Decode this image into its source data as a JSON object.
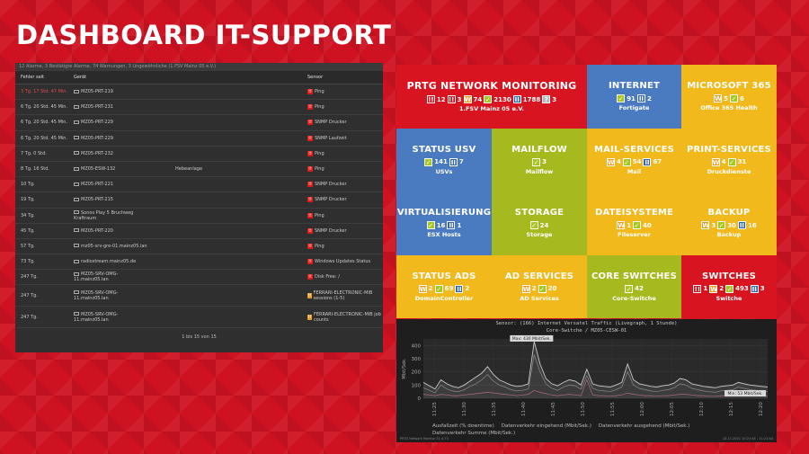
{
  "page": {
    "title": "DASHBOARD IT-SUPPORT"
  },
  "alarm_summary": "12 Alarme, 3 Bestätigte Alarme, 74 Warnungen, 3 Ungewöhnliche (1.FSV Mainz 05 e.V.)",
  "table": {
    "headers": {
      "since": "Fehler seit",
      "device": "Gerät",
      "sensor": "Sensor"
    },
    "rows": [
      {
        "since": "3 Tg. 17 Std. 47 Min.",
        "device": "MZ05-PRT-219",
        "extra": "",
        "sensor": "Ping",
        "badge": "down",
        "red": true
      },
      {
        "since": "6 Tg. 20 Std. 45 Min.",
        "device": "MZ05-PRT-231",
        "extra": "",
        "sensor": "Ping",
        "badge": "down",
        "red": false
      },
      {
        "since": "6 Tg. 20 Std. 45 Min.",
        "device": "MZ05-PRT-229",
        "extra": "",
        "sensor": "SNMP Drucker",
        "badge": "down",
        "red": false
      },
      {
        "since": "6 Tg. 20 Std. 45 Min.",
        "device": "MZ05-PRT-229",
        "extra": "",
        "sensor": "SNMP Laufzeit",
        "badge": "down",
        "red": false
      },
      {
        "since": "7 Tg. 0 Std.",
        "device": "MZ05-PRT-232",
        "extra": "",
        "sensor": "Ping",
        "badge": "down",
        "red": false
      },
      {
        "since": "8 Tg. 16 Std.",
        "device": "MZ05-ESW-132",
        "extra": "Hebeanlage",
        "sensor": "Ping",
        "badge": "down",
        "red": false
      },
      {
        "since": "10 Tg.",
        "device": "MZ05-PRT-221",
        "extra": "",
        "sensor": "SNMP Drucker",
        "badge": "down",
        "red": false
      },
      {
        "since": "19 Tg.",
        "device": "MZ05-PRT-215",
        "extra": "",
        "sensor": "SNMP Drucker",
        "badge": "down",
        "red": false
      },
      {
        "since": "34 Tg.",
        "device": "Sonos Play 5 Bruchweg Kraftraum",
        "extra": "",
        "sensor": "Ping",
        "badge": "down",
        "red": false
      },
      {
        "since": "45 Tg.",
        "device": "MZ05-PRT-220",
        "extra": "",
        "sensor": "SNMP Drucker",
        "badge": "down",
        "red": false
      },
      {
        "since": "57 Tg.",
        "device": "mz05-srv-gre-01.mainz05.lan",
        "extra": "",
        "sensor": "Ping",
        "badge": "down",
        "red": false
      },
      {
        "since": "73 Tg.",
        "device": "radiostream.mainz05.de",
        "extra": "",
        "sensor": "Windows Updates Status",
        "badge": "down",
        "red": false
      },
      {
        "since": "247 Tg.",
        "device": "MZ05-SRV-OMG-11.mainz05.lan",
        "extra": "",
        "sensor": "Disk Free: /",
        "badge": "down",
        "red": false
      },
      {
        "since": "247 Tg.",
        "device": "MZ05-SRV-OMG-11.mainz05.lan",
        "extra": "",
        "sensor": "FERRARI-ELECTRONIC-MIB sessions (1-5)",
        "badge": "orange",
        "red": false,
        "tall": true
      },
      {
        "since": "247 Tg.",
        "device": "MZ05-SRV-OMG-11.mainz05.lan",
        "extra": "",
        "sensor": "FERRARI-ELECTRONIC-MIB job counts",
        "badge": "orange",
        "red": false,
        "tall": true
      }
    ],
    "pager": "1 bis 15 von 15"
  },
  "tiles": [
    {
      "title": "PRTG NETWORK MONITORING",
      "color": "red",
      "sub": "1.FSV Mainz 05 e.V.",
      "badges": [
        {
          "k": "down",
          "v": "12"
        },
        {
          "k": "down",
          "v": "3"
        },
        {
          "k": "warn",
          "v": "74"
        },
        {
          "k": "ok",
          "v": "2130"
        },
        {
          "k": "pause",
          "v": "1788"
        },
        {
          "k": "unk",
          "v": "3"
        }
      ]
    },
    {
      "title": "INTERNET",
      "color": "blue",
      "sub": "Fortigate",
      "badges": [
        {
          "k": "ok",
          "v": "91"
        },
        {
          "k": "pause",
          "v": "2"
        }
      ]
    },
    {
      "title": "MICROSOFT 365",
      "color": "yellow",
      "sub": "Office 365 Health",
      "badges": [
        {
          "k": "warn",
          "v": "5"
        },
        {
          "k": "ok",
          "v": "6"
        }
      ]
    },
    {
      "title": "STATUS USV",
      "color": "blue",
      "sub": "USVs",
      "badges": [
        {
          "k": "ok",
          "v": "141"
        },
        {
          "k": "pause",
          "v": "7"
        }
      ]
    },
    {
      "title": "MAILFLOW",
      "color": "green",
      "sub": "Mailflow",
      "badges": [
        {
          "k": "ok",
          "v": "3"
        }
      ]
    },
    {
      "title": "MAIL-SERVICES",
      "color": "yellow",
      "sub": "Mail",
      "badges": [
        {
          "k": "warn",
          "v": "4"
        },
        {
          "k": "ok",
          "v": "54"
        },
        {
          "k": "pause",
          "v": "67"
        }
      ]
    },
    {
      "title": "PRINT-SERVICES",
      "color": "yellow",
      "sub": "Druckdienste",
      "badges": [
        {
          "k": "warn",
          "v": "4"
        },
        {
          "k": "ok",
          "v": "31"
        }
      ]
    },
    {
      "title": "VIRTUALISIERUNG",
      "color": "blue",
      "sub": "ESX Hosts",
      "badges": [
        {
          "k": "ok",
          "v": "16"
        },
        {
          "k": "pause",
          "v": "1"
        }
      ]
    },
    {
      "title": "STORAGE",
      "color": "green",
      "sub": "Storage",
      "badges": [
        {
          "k": "ok",
          "v": "24"
        }
      ]
    },
    {
      "title": "DATEISYSTEME",
      "color": "yellow",
      "sub": "Fileserver",
      "badges": [
        {
          "k": "warn",
          "v": "1"
        },
        {
          "k": "ok",
          "v": "40"
        }
      ]
    },
    {
      "title": "BACKUP",
      "color": "yellow",
      "sub": "Backup",
      "badges": [
        {
          "k": "warn",
          "v": "3"
        },
        {
          "k": "ok",
          "v": "30"
        },
        {
          "k": "pause",
          "v": "16"
        }
      ]
    },
    {
      "title": "STATUS ADS",
      "color": "yellow",
      "sub": "DomainController",
      "badges": [
        {
          "k": "warn",
          "v": "2"
        },
        {
          "k": "ok",
          "v": "69"
        },
        {
          "k": "pause",
          "v": "2"
        }
      ]
    },
    {
      "title": "AD SERVICES",
      "color": "yellow",
      "sub": "AD Services",
      "badges": [
        {
          "k": "warn",
          "v": "2"
        },
        {
          "k": "ok",
          "v": "20"
        }
      ]
    },
    {
      "title": "CORE SWITCHES",
      "color": "green",
      "sub": "Core-Switche",
      "badges": [
        {
          "k": "ok",
          "v": "42"
        }
      ]
    },
    {
      "title": "SWITCHES",
      "color": "red",
      "sub": "Switche",
      "badges": [
        {
          "k": "down",
          "v": "1"
        },
        {
          "k": "warn",
          "v": "2"
        },
        {
          "k": "ok",
          "v": "493"
        },
        {
          "k": "pause",
          "v": "3"
        }
      ]
    }
  ],
  "graph": {
    "title": "Sensor: (166) Internet Versatel Traffic (Livegraph, 1 Stunde)",
    "subtitle": "Core-Switche / MZ05-CESW-01",
    "max_label": "Max: 430 Mbit/Sek.",
    "min_label": "Min: 53 Mbit/Sek.",
    "legend": [
      "Ausfallzeit (% downtime)",
      "Datenverkehr eingehend (Mbit/Sek.)",
      "Datenverkehr ausgehend (Mbit/Sek.)"
    ],
    "legend2": "Datenverkehr Summe (Mbit/Sek.)",
    "footer_left": "PRTG Network Monitor 21.4.73",
    "footer_right": "10.11.2021 10:21:44 - 11:21:44",
    "ylabel": "Mbit/Sek."
  },
  "chart_data": {
    "type": "line",
    "ylabel": "Mbit/Sek.",
    "ylim": [
      0,
      450
    ],
    "yticks": [
      0,
      100,
      200,
      300,
      400
    ],
    "xticks": [
      "11:25",
      "11:30",
      "11:35",
      "11:40",
      "11:45",
      "11:50",
      "11:55",
      "12:00",
      "12:05",
      "12:10",
      "12:15",
      "12:20"
    ],
    "series": [
      {
        "name": "Datenverkehr Summe (Mbit/Sek.)",
        "color": "#c9c9c9",
        "values": [
          120,
          95,
          70,
          140,
          110,
          90,
          80,
          100,
          130,
          160,
          190,
          240,
          180,
          140,
          120,
          100,
          90,
          95,
          110,
          430,
          260,
          150,
          110,
          95,
          120,
          140,
          130,
          100,
          220,
          110,
          95,
          90,
          85,
          100,
          120,
          260,
          140,
          110,
          100,
          90,
          85,
          95,
          100,
          115,
          150,
          140,
          110,
          100,
          90,
          85,
          80,
          90,
          95,
          100,
          120,
          110,
          100,
          95,
          90,
          85
        ]
      },
      {
        "name": "Datenverkehr eingehend (Mbit/Sek.)",
        "color": "#8a8a8a",
        "values": [
          80,
          60,
          40,
          100,
          70,
          55,
          50,
          65,
          90,
          110,
          140,
          180,
          130,
          100,
          85,
          65,
          55,
          60,
          70,
          330,
          200,
          110,
          75,
          60,
          85,
          100,
          95,
          70,
          170,
          75,
          60,
          55,
          50,
          65,
          85,
          200,
          100,
          75,
          65,
          55,
          50,
          60,
          65,
          80,
          110,
          100,
          75,
          65,
          55,
          50,
          45,
          55,
          60,
          65,
          85,
          75,
          65,
          60,
          55,
          50
        ]
      },
      {
        "name": "Datenverkehr ausgehend (Mbit/Sek.)",
        "color": "#b06a8a",
        "values": [
          30,
          25,
          20,
          30,
          25,
          20,
          20,
          25,
          30,
          35,
          40,
          45,
          40,
          35,
          30,
          25,
          20,
          25,
          30,
          60,
          45,
          35,
          25,
          20,
          25,
          30,
          25,
          20,
          140,
          25,
          20,
          20,
          15,
          20,
          25,
          40,
          30,
          25,
          20,
          20,
          15,
          20,
          20,
          25,
          30,
          30,
          25,
          20,
          20,
          15,
          15,
          20,
          20,
          25,
          25,
          25,
          20,
          20,
          20,
          15
        ]
      }
    ]
  }
}
